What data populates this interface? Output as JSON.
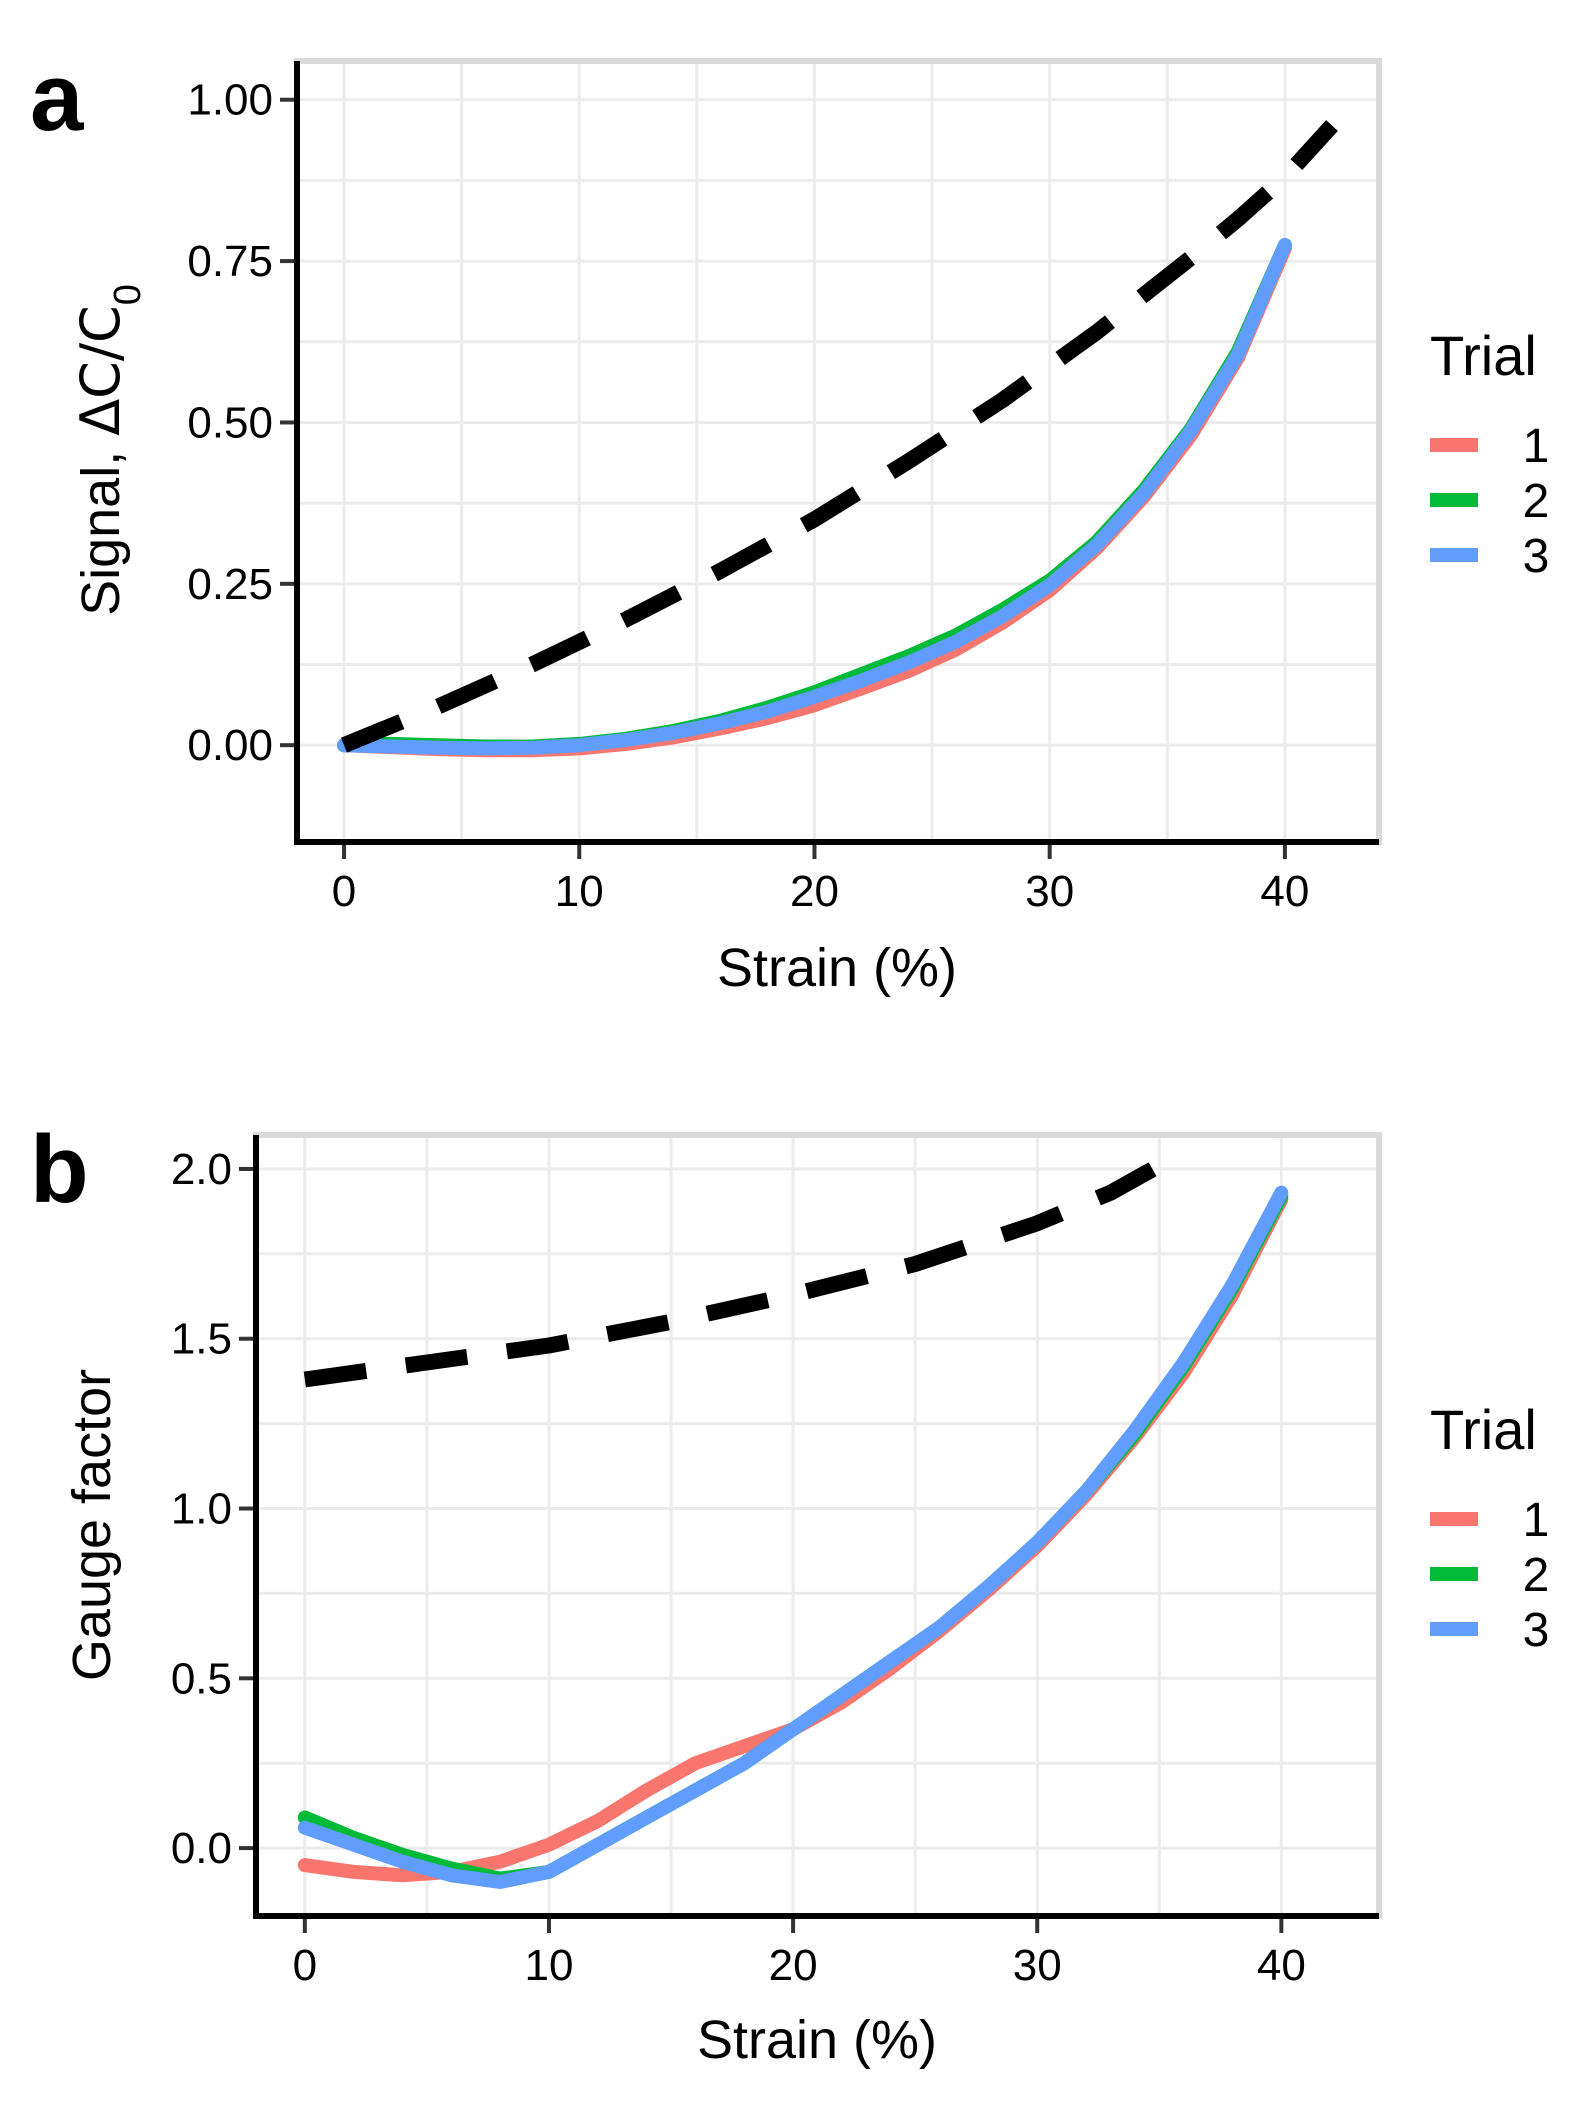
{
  "chart_data": [
    {
      "panel": "a",
      "type": "line",
      "title": "",
      "xlabel": "Strain (%)",
      "ylabel_main": "Signal, ",
      "ylabel_math": "ΔC/C",
      "ylabel_subscript": "0",
      "xlim": [
        -2,
        44
      ],
      "ylim": [
        -0.15,
        1.06
      ],
      "xticks": [
        0,
        10,
        20,
        30,
        40
      ],
      "xtick_labels": [
        "0",
        "10",
        "20",
        "30",
        "40"
      ],
      "yticks": [
        0,
        0.25,
        0.5,
        0.75,
        1.0
      ],
      "ytick_labels": [
        "0.00",
        "0.25",
        "0.50",
        "0.75",
        "1.00"
      ],
      "grid": true,
      "legend": {
        "title": "Trial",
        "placement": "right",
        "entries": [
          "1",
          "2",
          "3"
        ]
      },
      "series": [
        {
          "name": "1",
          "color": "#F8766D",
          "x": [
            0,
            2,
            4,
            6,
            8,
            10,
            12,
            14,
            16,
            18,
            20,
            22,
            24,
            26,
            28,
            30,
            32,
            34,
            36,
            38,
            40
          ],
          "y": [
            0,
            -0.003,
            -0.006,
            -0.008,
            -0.008,
            -0.005,
            0.002,
            0.012,
            0.026,
            0.042,
            0.062,
            0.088,
            0.115,
            0.148,
            0.19,
            0.24,
            0.305,
            0.385,
            0.48,
            0.6,
            0.77
          ]
        },
        {
          "name": "2",
          "color": "#00BA38",
          "x": [
            0,
            2,
            4,
            6,
            8,
            10,
            12,
            14,
            16,
            18,
            20,
            22,
            24,
            26,
            28,
            30,
            32,
            34,
            36,
            38,
            40
          ],
          "y": [
            0,
            0.002,
            0,
            -0.002,
            -0.002,
            0.002,
            0.01,
            0.022,
            0.038,
            0.058,
            0.082,
            0.11,
            0.138,
            0.17,
            0.21,
            0.255,
            0.315,
            0.395,
            0.49,
            0.61,
            0.775
          ]
        },
        {
          "name": "3",
          "color": "#619CFF",
          "x": [
            0,
            2,
            4,
            6,
            8,
            10,
            12,
            14,
            16,
            18,
            20,
            22,
            24,
            26,
            28,
            30,
            32,
            34,
            36,
            38,
            40
          ],
          "y": [
            0,
            -0.002,
            -0.004,
            -0.005,
            -0.004,
            0,
            0.008,
            0.019,
            0.034,
            0.052,
            0.075,
            0.1,
            0.128,
            0.16,
            0.2,
            0.248,
            0.31,
            0.39,
            0.487,
            0.605,
            0.775
          ]
        },
        {
          "name": "",
          "style": "dashed",
          "color": "#000000",
          "x": [
            0,
            4,
            8,
            12,
            16,
            20,
            24,
            28,
            32,
            36,
            38,
            40,
            42
          ],
          "y": [
            0,
            0.06,
            0.125,
            0.195,
            0.27,
            0.35,
            0.44,
            0.535,
            0.64,
            0.755,
            0.815,
            0.88,
            0.96
          ]
        }
      ]
    },
    {
      "panel": "b",
      "type": "line",
      "title": "",
      "xlabel": "Strain (%)",
      "ylabel": "Gauge factor",
      "xlim": [
        -2,
        44
      ],
      "ylim": [
        -0.2,
        2.1
      ],
      "xticks": [
        0,
        10,
        20,
        30,
        40
      ],
      "xtick_labels": [
        "0",
        "10",
        "20",
        "30",
        "40"
      ],
      "yticks": [
        0,
        0.5,
        1.0,
        1.5,
        2.0
      ],
      "ytick_labels": [
        "0.0",
        "0.5",
        "1.0",
        "1.5",
        "2.0"
      ],
      "grid": true,
      "legend": {
        "title": "Trial",
        "placement": "right",
        "entries": [
          "1",
          "2",
          "3"
        ]
      },
      "series": [
        {
          "name": "1",
          "color": "#F8766D",
          "x": [
            0,
            2,
            4,
            6,
            8,
            10,
            12,
            14,
            16,
            18,
            20,
            22,
            24,
            26,
            28,
            30,
            32,
            34,
            36,
            38,
            40
          ],
          "y": [
            -0.05,
            -0.07,
            -0.08,
            -0.07,
            -0.04,
            0.01,
            0.08,
            0.17,
            0.25,
            0.3,
            0.35,
            0.43,
            0.53,
            0.64,
            0.76,
            0.89,
            1.04,
            1.21,
            1.4,
            1.63,
            1.91
          ]
        },
        {
          "name": "2",
          "color": "#00BA38",
          "x": [
            0,
            2,
            4,
            6,
            8,
            10,
            12,
            14,
            16,
            18,
            20,
            22,
            24,
            26,
            28,
            30,
            32,
            34,
            36,
            38,
            40
          ],
          "y": [
            0.09,
            0.03,
            -0.02,
            -0.06,
            -0.09,
            -0.07,
            0.01,
            0.09,
            0.17,
            0.25,
            0.35,
            0.45,
            0.55,
            0.65,
            0.77,
            0.9,
            1.05,
            1.22,
            1.42,
            1.65,
            1.92
          ]
        },
        {
          "name": "3",
          "color": "#619CFF",
          "x": [
            0,
            2,
            4,
            6,
            8,
            10,
            12,
            14,
            16,
            18,
            20,
            22,
            24,
            26,
            28,
            30,
            32,
            34,
            36,
            38,
            40
          ],
          "y": [
            0.06,
            0.01,
            -0.04,
            -0.08,
            -0.1,
            -0.07,
            0.01,
            0.09,
            0.17,
            0.25,
            0.35,
            0.45,
            0.55,
            0.65,
            0.77,
            0.9,
            1.05,
            1.23,
            1.43,
            1.66,
            1.93
          ]
        },
        {
          "name": "",
          "style": "dashed",
          "color": "#000000",
          "x": [
            0,
            5,
            10,
            15,
            20,
            25,
            30,
            33,
            35.5
          ],
          "y": [
            1.38,
            1.43,
            1.48,
            1.55,
            1.63,
            1.72,
            1.84,
            1.93,
            2.03
          ]
        }
      ]
    }
  ]
}
